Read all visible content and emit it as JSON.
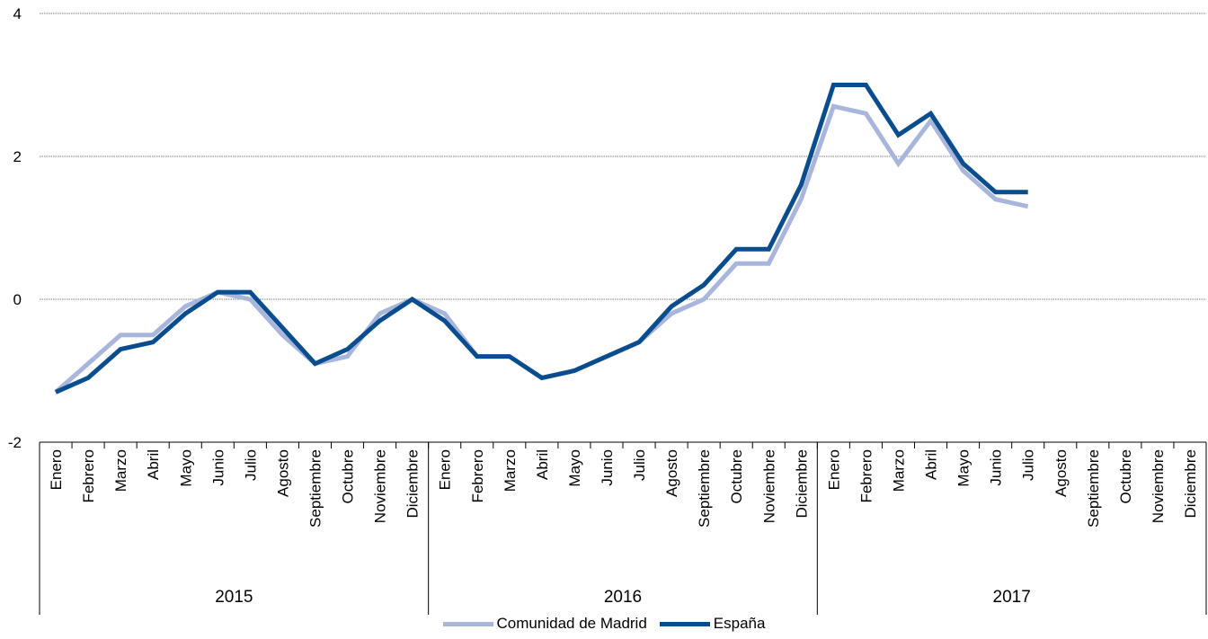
{
  "chart_data": {
    "type": "line",
    "y_ticks": [
      "4",
      "2",
      "0",
      "-2"
    ],
    "ylim": [
      -2,
      4
    ],
    "grid": true,
    "legend_position": "bottom",
    "year_groups": [
      {
        "label": "2015",
        "months": [
          "Enero",
          "Febrero",
          "Marzo",
          "Abril",
          "Mayo",
          "Junio",
          "Julio",
          "Agosto",
          "Septiembre",
          "Octubre",
          "Noviembre",
          "Diciembre"
        ]
      },
      {
        "label": "2016",
        "months": [
          "Enero",
          "Febrero",
          "Marzo",
          "Abril",
          "Mayo",
          "Junio",
          "Julio",
          "Agosto",
          "Septiembre",
          "Octubre",
          "Noviembre",
          "Diciembre"
        ]
      },
      {
        "label": "2017",
        "months": [
          "Enero",
          "Febrero",
          "Marzo",
          "Abril",
          "Mayo",
          "Junio",
          "Julio",
          "Agosto",
          "Septiembre",
          "Octubre",
          "Noviembre",
          "Diciembre"
        ]
      }
    ],
    "series": [
      {
        "name": "Comunidad de Madrid",
        "color": "#a9b6dc",
        "values": [
          -1.3,
          -0.9,
          -0.5,
          -0.5,
          -0.1,
          0.1,
          0.0,
          -0.5,
          -0.9,
          -0.8,
          -0.2,
          0.0,
          -0.2,
          -0.8,
          -0.8,
          -1.1,
          -1.0,
          -0.8,
          -0.6,
          -0.2,
          0.0,
          0.5,
          0.5,
          1.4,
          2.7,
          2.6,
          1.9,
          2.5,
          1.8,
          1.4,
          1.3
        ]
      },
      {
        "name": "España",
        "color": "#0a4d8f",
        "values": [
          -1.3,
          -1.1,
          -0.7,
          -0.6,
          -0.2,
          0.1,
          0.1,
          -0.4,
          -0.9,
          -0.7,
          -0.3,
          0.0,
          -0.3,
          -0.8,
          -0.8,
          -1.1,
          -1.0,
          -0.8,
          -0.6,
          -0.1,
          0.2,
          0.7,
          0.7,
          1.6,
          3.0,
          3.0,
          2.3,
          2.6,
          1.9,
          1.5,
          1.5
        ]
      }
    ]
  }
}
